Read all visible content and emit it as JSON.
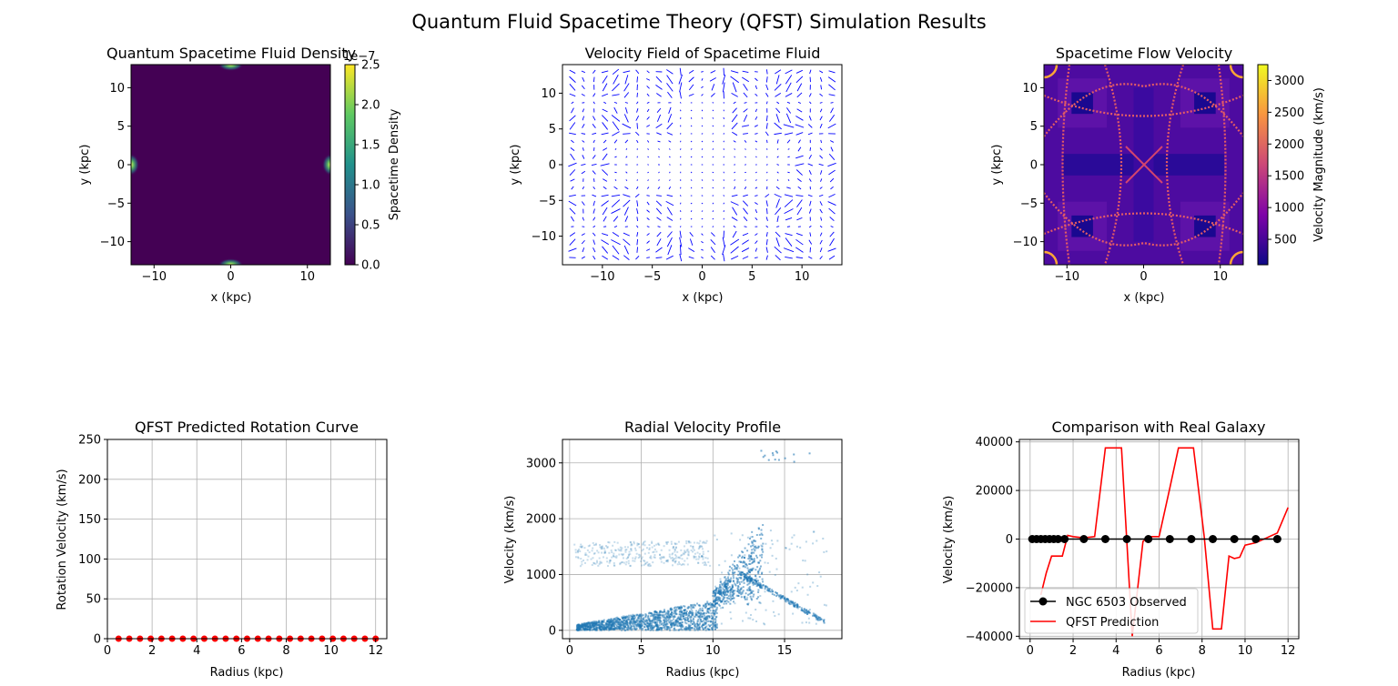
{
  "figure": {
    "suptitle": "Quantum Fluid Spacetime Theory (QFST) Simulation Results"
  },
  "colors": {
    "line_red": "#ff0000",
    "scatter_blue": "#1f77b4",
    "quiver_blue": "#0000ff",
    "observed": "#000000",
    "grid": "#b0b0b0"
  },
  "chart_data": [
    {
      "type": "heatmap",
      "title": "Quantum Spacetime Fluid Density",
      "xlabel": "x (kpc)",
      "ylabel": "y (kpc)",
      "xlim": [
        -13,
        13
      ],
      "ylim": [
        -13,
        13
      ],
      "xticks": [
        -10,
        0,
        10
      ],
      "yticks": [
        -10,
        -5,
        0,
        5,
        10
      ],
      "colormap": "viridis",
      "colorbar": {
        "label": "Spacetime Density",
        "offset_text": "1e−7",
        "ticks": [
          "0.0",
          "0.5",
          "1.0",
          "1.5",
          "2.0",
          "2.5"
        ],
        "min": 0,
        "max": 2.5
      },
      "hotspots": [
        {
          "x": 0,
          "y": 13
        },
        {
          "x": 0,
          "y": -13
        },
        {
          "x": -13,
          "y": 0
        },
        {
          "x": 13,
          "y": 0
        }
      ]
    },
    {
      "type": "quiver",
      "title": "Velocity Field of Spacetime Fluid",
      "xlabel": "x (kpc)",
      "ylabel": "y (kpc)",
      "xlim": [
        -14,
        14
      ],
      "ylim": [
        -14,
        14
      ],
      "xticks": [
        -10,
        -5,
        0,
        5,
        10
      ],
      "yticks": [
        -10,
        -5,
        0,
        5,
        10
      ],
      "grid_range": [
        -13,
        13
      ],
      "grid_n": 25
    },
    {
      "type": "heatmap",
      "title": "Spacetime Flow Velocity",
      "xlabel": "x (kpc)",
      "ylabel": "y (kpc)",
      "xlim": [
        -13,
        13
      ],
      "ylim": [
        -13,
        13
      ],
      "xticks": [
        -10,
        0,
        10
      ],
      "yticks": [
        -10,
        -5,
        0,
        5,
        10
      ],
      "colormap": "plasma",
      "colorbar": {
        "label": "Velocity Magnitude (km/s)",
        "ticks": [
          500,
          1000,
          1500,
          2000,
          2500,
          3000
        ],
        "min": 100,
        "max": 3250
      }
    },
    {
      "type": "scatter",
      "title": "QFST Predicted Rotation Curve",
      "xlabel": "Radius (kpc)",
      "ylabel": "Rotation Velocity (km/s)",
      "xlim": [
        0,
        12.5
      ],
      "ylim": [
        0,
        250
      ],
      "xticks": [
        0,
        2,
        4,
        6,
        8,
        10,
        12
      ],
      "yticks": [
        0,
        50,
        100,
        150,
        200,
        250
      ],
      "grid": true,
      "series": [
        {
          "x_start": 0.5,
          "x_end": 12,
          "n": 25,
          "y": 0
        }
      ]
    },
    {
      "type": "scatter",
      "title": "Radial Velocity Profile",
      "xlabel": "Radius (kpc)",
      "ylabel": "Velocity (km/s)",
      "xlim": [
        -0.5,
        19
      ],
      "ylim": [
        -150,
        3420
      ],
      "xticks": [
        0,
        5,
        10,
        15
      ],
      "yticks": [
        0,
        1000,
        2000,
        3000
      ],
      "grid": true
    },
    {
      "type": "line",
      "title": "Comparison with Real Galaxy",
      "xlabel": "Radius (kpc)",
      "ylabel": "Velocity (km/s)",
      "xlim": [
        -0.5,
        12.5
      ],
      "ylim": [
        -41000,
        41000
      ],
      "xticks": [
        0,
        2,
        4,
        6,
        8,
        10,
        12
      ],
      "yticks": [
        -40000,
        -20000,
        0,
        20000,
        40000
      ],
      "grid": true,
      "legend": "lower left",
      "series": [
        {
          "name": "NGC 6503 Observed",
          "x": [
            0.1,
            0.3,
            0.5,
            0.7,
            0.9,
            1.1,
            1.3,
            1.6,
            2.5,
            3.5,
            4.5,
            5.5,
            6.5,
            7.5,
            8.5,
            9.5,
            10.5,
            11.5
          ],
          "y": [
            0,
            0,
            0,
            0,
            0,
            0,
            0,
            0,
            0,
            0,
            0,
            0,
            0,
            0,
            0,
            0,
            0,
            0
          ]
        },
        {
          "name": "QFST Prediction",
          "x": [
            0.5,
            0.75,
            1.0,
            1.5,
            1.75,
            2.0,
            2.5,
            3.0,
            3.5,
            4.25,
            4.75,
            5.25,
            5.5,
            6.0,
            6.5,
            6.9,
            7.6,
            8.1,
            8.5,
            8.9,
            9.25,
            9.5,
            9.75,
            10.0,
            10.5,
            11.0,
            11.5,
            12.0
          ],
          "y": [
            -23000,
            -14000,
            -7000,
            -7000,
            1500,
            1000,
            500,
            1000,
            37500,
            37500,
            -40000,
            -1000,
            1000,
            1000,
            21000,
            37500,
            37500,
            1000,
            -37000,
            -37000,
            -7000,
            -8000,
            -7500,
            -2500,
            -1500,
            500,
            2500,
            13000
          ]
        }
      ]
    }
  ]
}
